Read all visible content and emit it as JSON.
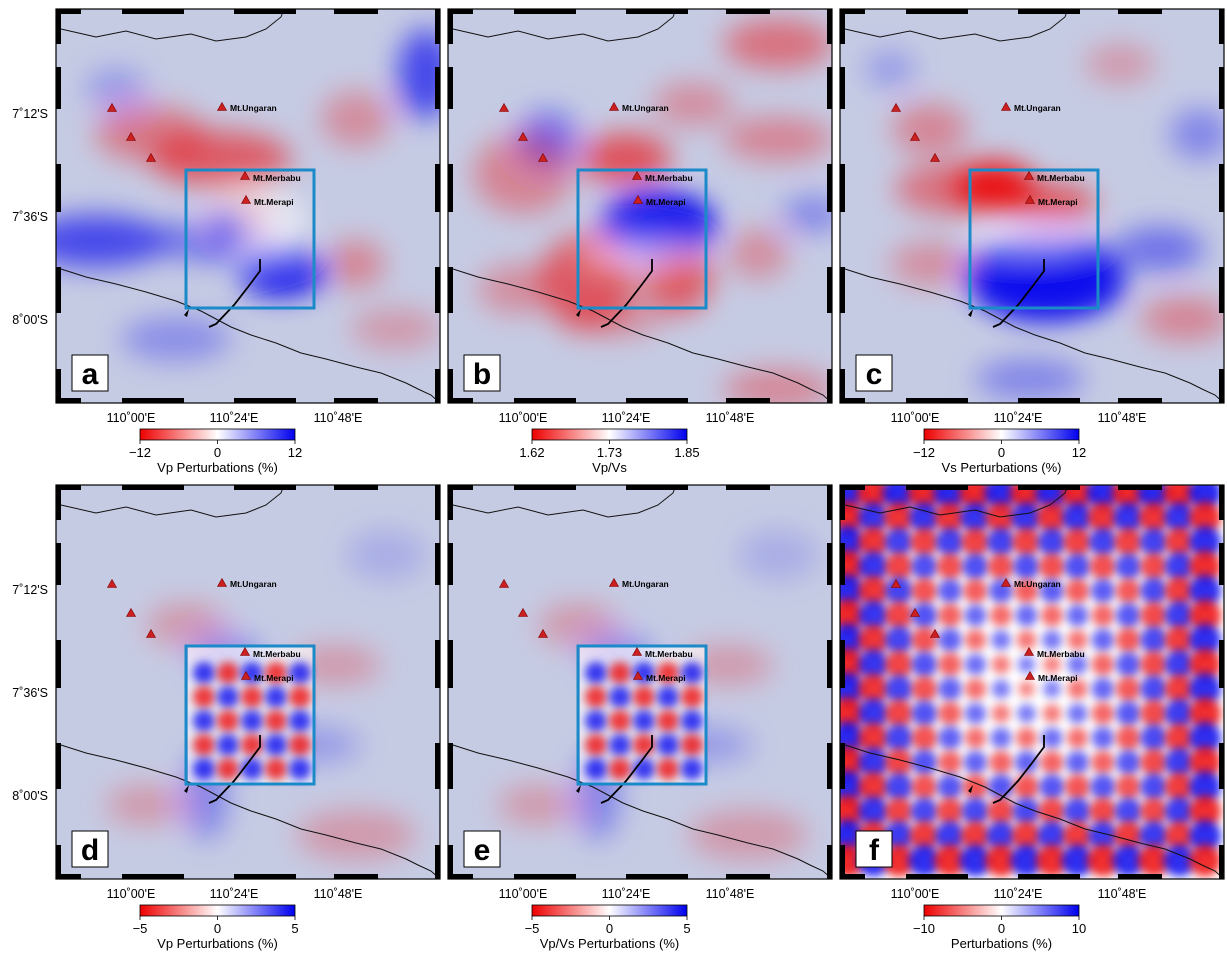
{
  "colors": {
    "positive": "#0000ee",
    "negative": "#ee0000",
    "neutral": "#ffffff",
    "background_tint": "#c6cbe4",
    "study_box": "#1a8ac8",
    "volcano": "#cc1f1f"
  },
  "map": {
    "lat_ticks": [
      "7˚12'S",
      "7˚36'S",
      "8˚00'S"
    ],
    "lon_ticks": [
      "110˚00'E",
      "110˚24'E",
      "110˚48'E"
    ],
    "volcano_labels": [
      "Mt.Ungaran",
      "Mt.Merbabu",
      "Mt.Merapi"
    ]
  },
  "panels": [
    {
      "letter": "a",
      "cb_ticks": [
        "−12",
        "0",
        "12"
      ],
      "cb_label": "Vp Perturbations (%)"
    },
    {
      "letter": "b",
      "cb_ticks": [
        "1.62",
        "1.73",
        "1.85"
      ],
      "cb_label": "Vp/Vs"
    },
    {
      "letter": "c",
      "cb_ticks": [
        "−12",
        "0",
        "12"
      ],
      "cb_label": "Vs Perturbations (%)"
    },
    {
      "letter": "d",
      "cb_ticks": [
        "−5",
        "0",
        "5"
      ],
      "cb_label": "Vp Perturbations (%)"
    },
    {
      "letter": "e",
      "cb_ticks": [
        "−5",
        "0",
        "5"
      ],
      "cb_label": "Vp/Vs Perturbations (%)"
    },
    {
      "letter": "f",
      "cb_ticks": [
        "−10",
        "0",
        "10"
      ],
      "cb_label": "Perturbations (%)"
    }
  ]
}
